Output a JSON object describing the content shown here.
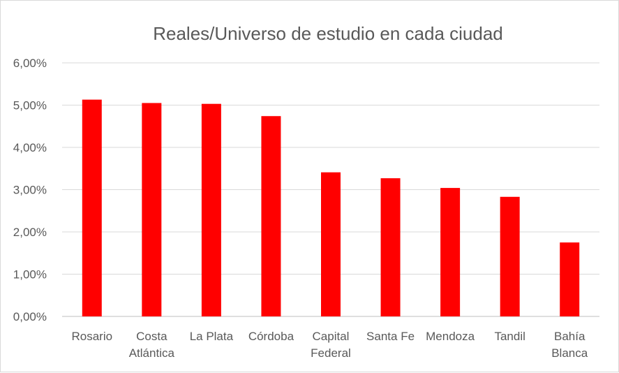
{
  "chart_data": {
    "type": "bar",
    "title": "Reales/Universo  de estudio en cada ciudad",
    "categories": [
      [
        "Rosario"
      ],
      [
        "Costa",
        "Atlántica"
      ],
      [
        "La Plata"
      ],
      [
        "Córdoba"
      ],
      [
        "Capital",
        "Federal"
      ],
      [
        "Santa Fe"
      ],
      [
        "Mendoza"
      ],
      [
        "Tandil"
      ],
      [
        "Bahía",
        "Blanca"
      ]
    ],
    "values": [
      5.13,
      5.05,
      5.03,
      4.74,
      3.41,
      3.27,
      3.04,
      2.83,
      1.75
    ],
    "ylim": [
      0,
      6
    ],
    "yticks": [
      0,
      1,
      2,
      3,
      4,
      5,
      6
    ],
    "ytick_labels": [
      "0,00%",
      "1,00%",
      "2,00%",
      "3,00%",
      "4,00%",
      "5,00%",
      "6,00%"
    ],
    "xlabel": "",
    "ylabel": "",
    "grid": true,
    "legend": "none",
    "bar_color": "#ff0000"
  }
}
